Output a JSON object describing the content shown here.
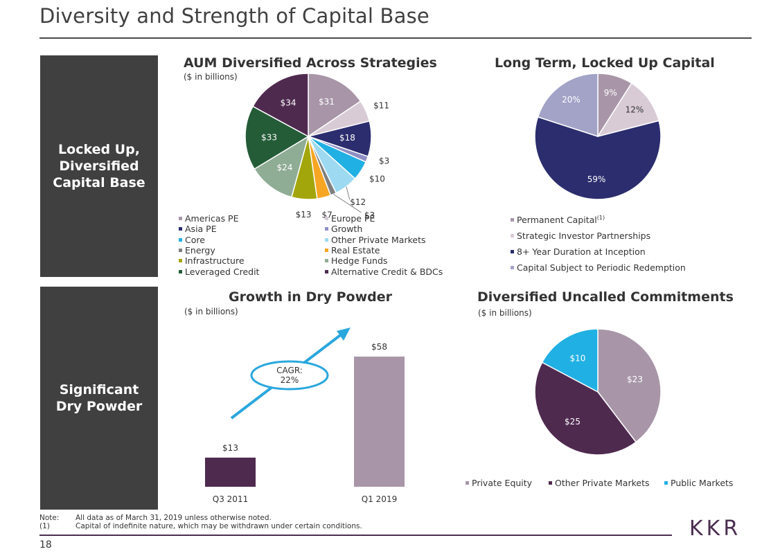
{
  "page": {
    "title": "Diversity and Strength of Capital Base",
    "page_number": "18",
    "logo_text": "KKR",
    "side_top": [
      "Locked Up,",
      "Diversified",
      "Capital Base"
    ],
    "side_bottom": [
      "Significant",
      "Dry Powder"
    ],
    "note_label": "Note:",
    "note_text": "All data as of March 31, 2019 unless otherwise noted.",
    "footnote_label": "(1)",
    "footnote_text": "Capital of indefinite nature, which may be withdrawn under certain conditions."
  },
  "chart_data": [
    {
      "type": "pie",
      "title": "AUM Diversified Across Strategies",
      "subtitle": "($ in billions)",
      "slices": [
        {
          "name": "Americas PE",
          "value": 31,
          "label": "$31",
          "color": "#a896a8"
        },
        {
          "name": "Europe PE",
          "value": 11,
          "label": "$11",
          "color": "#d8cbd6"
        },
        {
          "name": "Asia PE",
          "value": 18,
          "label": "$18",
          "color": "#2b2d6e"
        },
        {
          "name": "Growth",
          "value": 3,
          "label": "$3",
          "color": "#8e8fc4"
        },
        {
          "name": "Core",
          "value": 10,
          "label": "$10",
          "color": "#21b0e3"
        },
        {
          "name": "Other Private Markets",
          "value": 12,
          "label": "$12",
          "color": "#9ddaf1"
        },
        {
          "name": "Energy",
          "value": 3,
          "label": "$3",
          "color": "#7f7f7f"
        },
        {
          "name": "Real Estate",
          "value": 7,
          "label": "$7",
          "color": "#f6a623"
        },
        {
          "name": "Infrastructure",
          "value": 13,
          "label": "$13",
          "color": "#a3a60b"
        },
        {
          "name": "Hedge Funds",
          "value": 24,
          "label": "$24",
          "color": "#8fac94"
        },
        {
          "name": "Leveraged Credit",
          "value": 33,
          "label": "$33",
          "color": "#245c38"
        },
        {
          "name": "Alternative Credit & BDCs",
          "value": 34,
          "label": "$34",
          "color": "#4f2a4f"
        }
      ],
      "legend_left": [
        "Americas PE",
        "Asia PE",
        "Core",
        "Energy",
        "Infrastructure",
        "Leveraged Credit"
      ],
      "legend_right": [
        "Europe PE",
        "Growth",
        "Other Private Markets",
        "Real Estate",
        "Hedge Funds",
        "Alternative Credit & BDCs"
      ]
    },
    {
      "type": "pie",
      "title": "Long Term, Locked Up Capital",
      "slices": [
        {
          "name": "Permanent Capital",
          "value": 9,
          "label": "9%",
          "color": "#a896a8"
        },
        {
          "name": "Strategic Investor Partnerships",
          "value": 12,
          "label": "12%",
          "color": "#d8cbd6"
        },
        {
          "name": "8+ Year Duration at Inception",
          "value": 59,
          "label": "59%",
          "color": "#2b2d6e"
        },
        {
          "name": "Capital Subject to Periodic Redemption",
          "value": 20,
          "label": "20%",
          "color": "#a3a3c8"
        }
      ],
      "legend": [
        "Permanent Capital",
        "Strategic Investor Partnerships",
        "8+ Year Duration at Inception",
        "Capital Subject to Periodic Redemption"
      ],
      "footnote_marker": "(1)"
    },
    {
      "type": "bar",
      "title": "Growth in Dry Powder",
      "subtitle": "($ in billions)",
      "categories": [
        "Q3 2011",
        "Q1 2019"
      ],
      "values": [
        13,
        58
      ],
      "labels": [
        "$13",
        "$58"
      ],
      "colors": [
        "#4f2a4f",
        "#a896a8"
      ],
      "annotation": {
        "line1": "CAGR:",
        "line2": "22%"
      },
      "ylim": [
        0,
        58
      ]
    },
    {
      "type": "pie",
      "title": "Diversified Uncalled Commitments",
      "subtitle": "($ in billions)",
      "slices": [
        {
          "name": "Private Equity",
          "value": 23,
          "label": "$23",
          "color": "#a896a8"
        },
        {
          "name": "Other Private Markets",
          "value": 25,
          "label": "$25",
          "color": "#4f2a4f"
        },
        {
          "name": "Public Markets",
          "value": 10,
          "label": "$10",
          "color": "#21b0e3"
        }
      ],
      "legend": [
        "Private Equity",
        "Other Private Markets",
        "Public Markets"
      ]
    }
  ]
}
